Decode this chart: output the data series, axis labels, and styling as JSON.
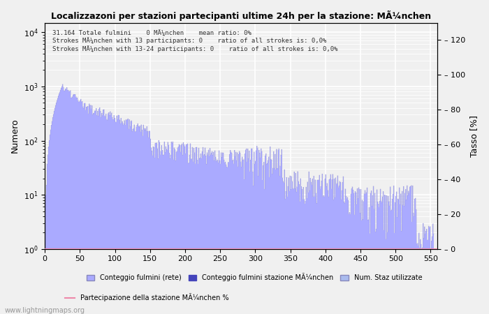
{
  "title": "Localizzazoni per stazioni partecipanti ultime 24h per la stazione: MÃ¼nchen",
  "ylabel_left": "Numero",
  "ylabel_right": "Tasso [%]",
  "annotation_line1": "31.164 Totale fulmini    0 MÃ¼nchen    mean ratio: 0%",
  "annotation_line2": "Strokes MÃ¼nchen with 13 participants: 0    ratio of all strokes is: 0,0%",
  "annotation_line3": "Strokes MÃ¼nchen with 13-24 participants: 0    ratio of all strokes is: 0,0%",
  "xlim": [
    0,
    560
  ],
  "ylim_right": [
    0,
    130
  ],
  "bar_color": "#aaaaff",
  "bar_edge_color": "#9999cc",
  "station_bar_color": "#4444bb",
  "line_color": "#ee88aa",
  "background_color": "#f0f0f0",
  "grid_color": "#ffffff",
  "watermark": "www.lightningmaps.org",
  "legend_label_net": "Conteggio fulmini (rete)",
  "legend_label_station": "Conteggio fulmini stazione MÃ¼nchen",
  "legend_label_num": "Num. Staz utilizzate",
  "legend_label_part": "Partecipazione della stazione MÃ¼nchen %",
  "xticks": [
    0,
    50,
    100,
    150,
    200,
    250,
    300,
    350,
    400,
    450,
    500,
    550
  ],
  "yticks_right": [
    0,
    20,
    40,
    60,
    80,
    100,
    120
  ],
  "num_bins": 555
}
